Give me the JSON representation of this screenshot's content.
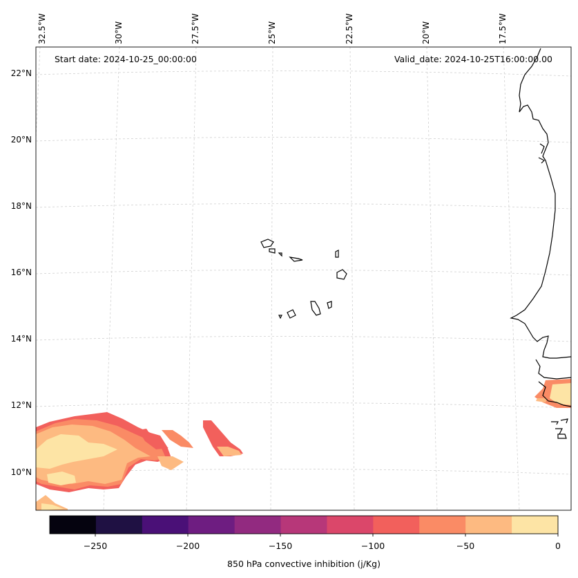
{
  "map": {
    "start_date_text": "Start date: 2024-10-25_00:00:00",
    "valid_date_text": "Valid_date: 2024-10-25T16:00:00.00",
    "lon_labels": [
      "32.5°W",
      "30°W",
      "27.5°W",
      "25°W",
      "22.5°W",
      "20°W",
      "17.5°W"
    ],
    "lat_labels": [
      "22°N",
      "20°N",
      "18°N",
      "16°N",
      "14°N",
      "12°N",
      "10°N"
    ],
    "variable": "850 hPa convective inhibition",
    "units": "j/Kg"
  },
  "colorbar": {
    "label": "850 hPa convective inhibition (j/Kg)",
    "tick_labels": [
      "−250",
      "−200",
      "−150",
      "−100",
      "−50",
      "0"
    ],
    "colors": [
      "#05030f",
      "#1f1143",
      "#4a1077",
      "#6e1d81",
      "#922a80",
      "#b73779",
      "#db476a",
      "#f2605c",
      "#fa8b65",
      "#fdba81",
      "#fde4a5"
    ]
  }
}
